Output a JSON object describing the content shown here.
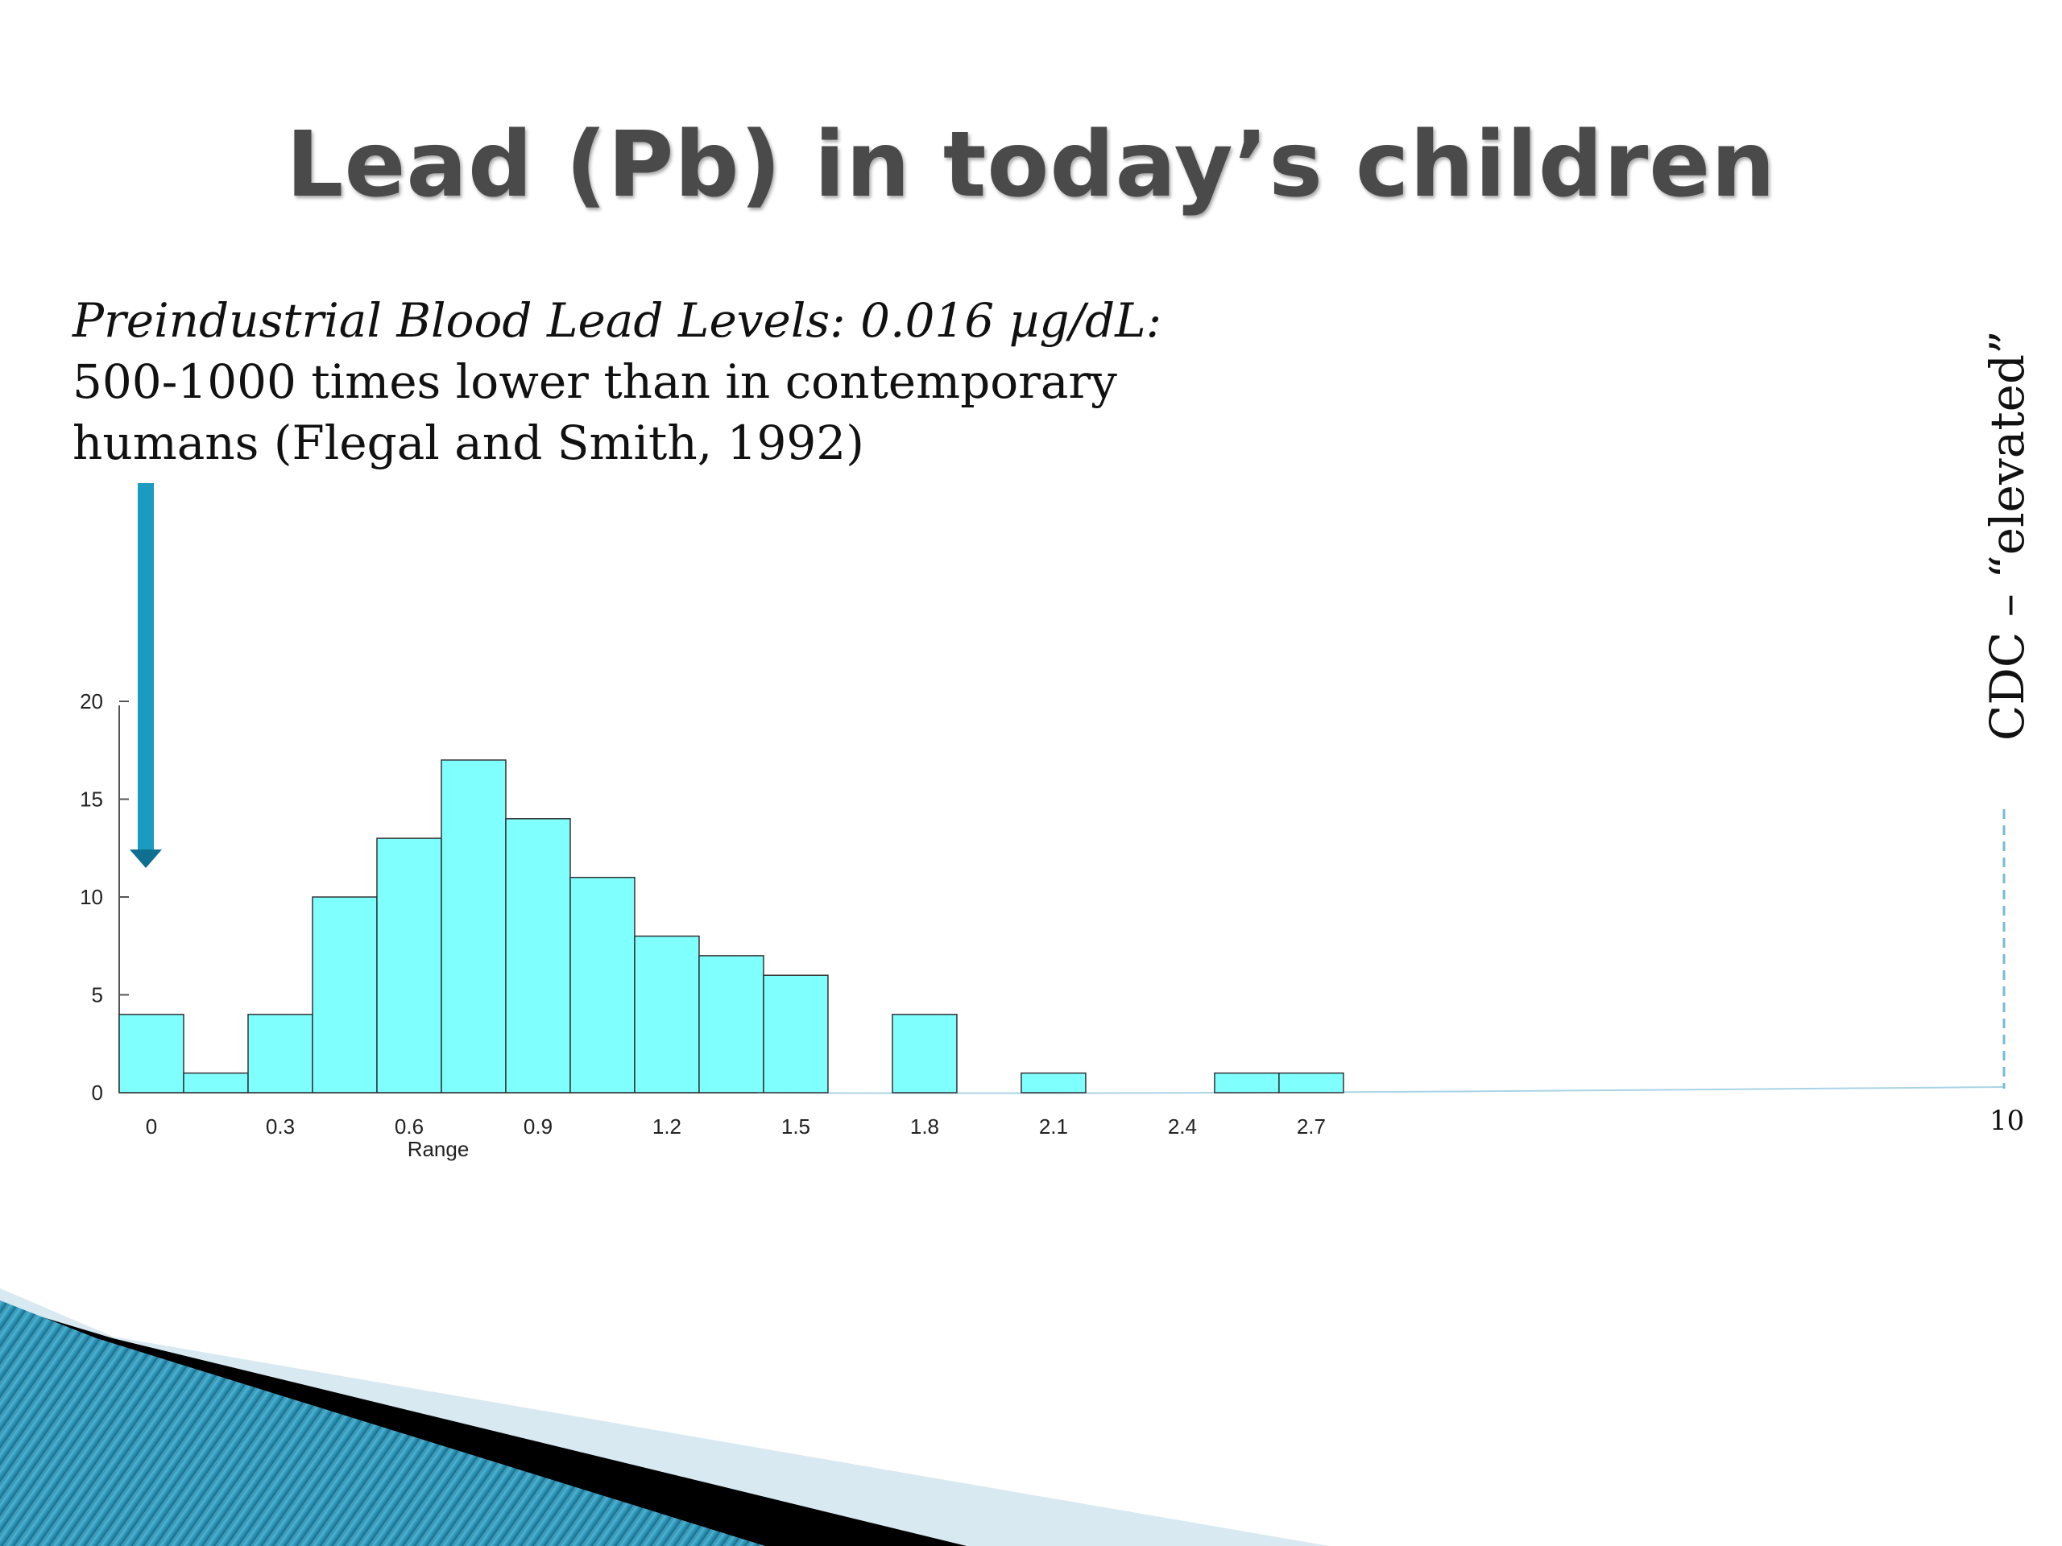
{
  "slide": {
    "title": "Lead (Pb) in today’s children",
    "intro_italic": "Preindustrial Blood Lead Levels: 0.016 µg/dL:",
    "intro_line2": "500-1000 times lower than in contemporary",
    "intro_line3": "humans (Flegal and Smith, 1992)",
    "cdc_label": "CDC – “elevated”",
    "far_tick_label": "10"
  },
  "colors": {
    "bar_fill": "#80FFFF",
    "bar_stroke": "#333333",
    "arrow": "#1a9bbf",
    "dashed_line": "#7ab8d6",
    "title": "#4a4a4a"
  },
  "chart_data": {
    "type": "bar",
    "title": "",
    "xlabel": "Range",
    "ylabel": "",
    "ylim": [
      0,
      20
    ],
    "y_ticks": [
      0,
      5,
      10,
      15,
      20
    ],
    "x_tick_labels": [
      "0",
      "0.3",
      "0.6",
      "0.9",
      "1.2",
      "1.5",
      "1.8",
      "2.1",
      "2.4",
      "2.7"
    ],
    "bin_starts": [
      0,
      0.15,
      0.3,
      0.45,
      0.6,
      0.75,
      0.9,
      1.05,
      1.2,
      1.35,
      1.5,
      1.65,
      1.8,
      1.95,
      2.1,
      2.25,
      2.4,
      2.55,
      2.7
    ],
    "bin_width": 0.15,
    "values": [
      4,
      1,
      4,
      10,
      13,
      17,
      14,
      11,
      8,
      7,
      6,
      0,
      4,
      0,
      1,
      0,
      0,
      1,
      1
    ],
    "reference_line": {
      "x": 10,
      "label": "CDC – “elevated”"
    },
    "grid": false,
    "legend": "none"
  }
}
